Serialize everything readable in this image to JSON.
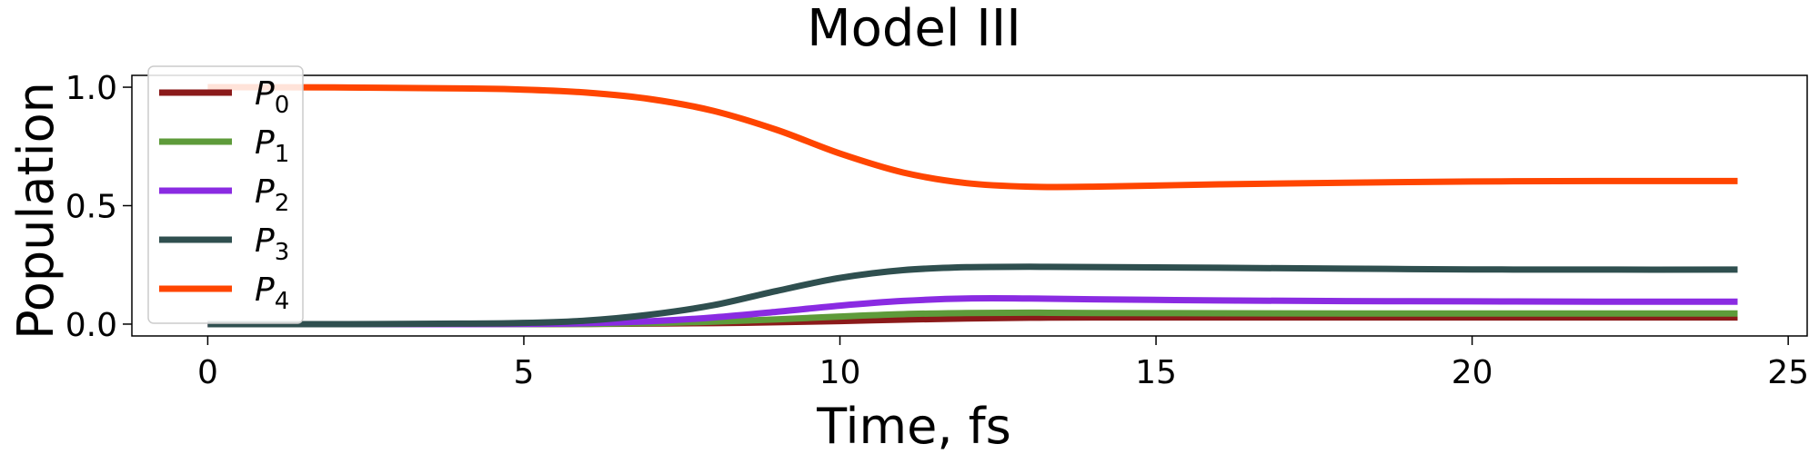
{
  "chart_data": {
    "type": "line",
    "title": "Model III",
    "xlabel": "Time, fs",
    "ylabel": "Population",
    "xlim": [
      -1.2,
      25.3
    ],
    "ylim": [
      -0.05,
      1.05
    ],
    "xticks": [
      0,
      5,
      10,
      15,
      20,
      25
    ],
    "xtick_labels": [
      "0",
      "5",
      "10",
      "15",
      "20",
      "25"
    ],
    "yticks": [
      0.0,
      0.5,
      1.0
    ],
    "ytick_labels": [
      "0.0",
      "0.5",
      "1.0"
    ],
    "grid": false,
    "legend_position": "top-left",
    "x": [
      0,
      2,
      4,
      5,
      6,
      7,
      8,
      9,
      10,
      11,
      12,
      13,
      14,
      16,
      18,
      20,
      22,
      24.2
    ],
    "series": [
      {
        "name": "P",
        "subscript": "0",
        "color": "#8B1A1A",
        "values": [
          0,
          0,
          0,
          0,
          0.001,
          0.002,
          0.004,
          0.008,
          0.013,
          0.019,
          0.024,
          0.027,
          0.028,
          0.028,
          0.028,
          0.028,
          0.028,
          0.028
        ]
      },
      {
        "name": "P",
        "subscript": "1",
        "color": "#5E9B3A",
        "values": [
          0,
          0,
          0,
          0,
          0.001,
          0.004,
          0.01,
          0.02,
          0.032,
          0.042,
          0.047,
          0.048,
          0.047,
          0.046,
          0.045,
          0.045,
          0.045,
          0.045
        ]
      },
      {
        "name": "P",
        "subscript": "2",
        "color": "#8A2BE2",
        "values": [
          0,
          0,
          0,
          0.001,
          0.004,
          0.012,
          0.028,
          0.052,
          0.078,
          0.098,
          0.108,
          0.108,
          0.105,
          0.1,
          0.097,
          0.096,
          0.095,
          0.095
        ]
      },
      {
        "name": "P",
        "subscript": "3",
        "color": "#2F4F4F",
        "values": [
          0,
          0,
          0.002,
          0.005,
          0.015,
          0.04,
          0.08,
          0.14,
          0.195,
          0.228,
          0.24,
          0.242,
          0.241,
          0.238,
          0.234,
          0.231,
          0.23,
          0.23
        ]
      },
      {
        "name": "P",
        "subscript": "4",
        "color": "#FF4500",
        "values": [
          1.0,
          0.999,
          0.995,
          0.99,
          0.977,
          0.95,
          0.9,
          0.82,
          0.72,
          0.64,
          0.595,
          0.58,
          0.58,
          0.59,
          0.597,
          0.602,
          0.604,
          0.604
        ]
      }
    ]
  }
}
